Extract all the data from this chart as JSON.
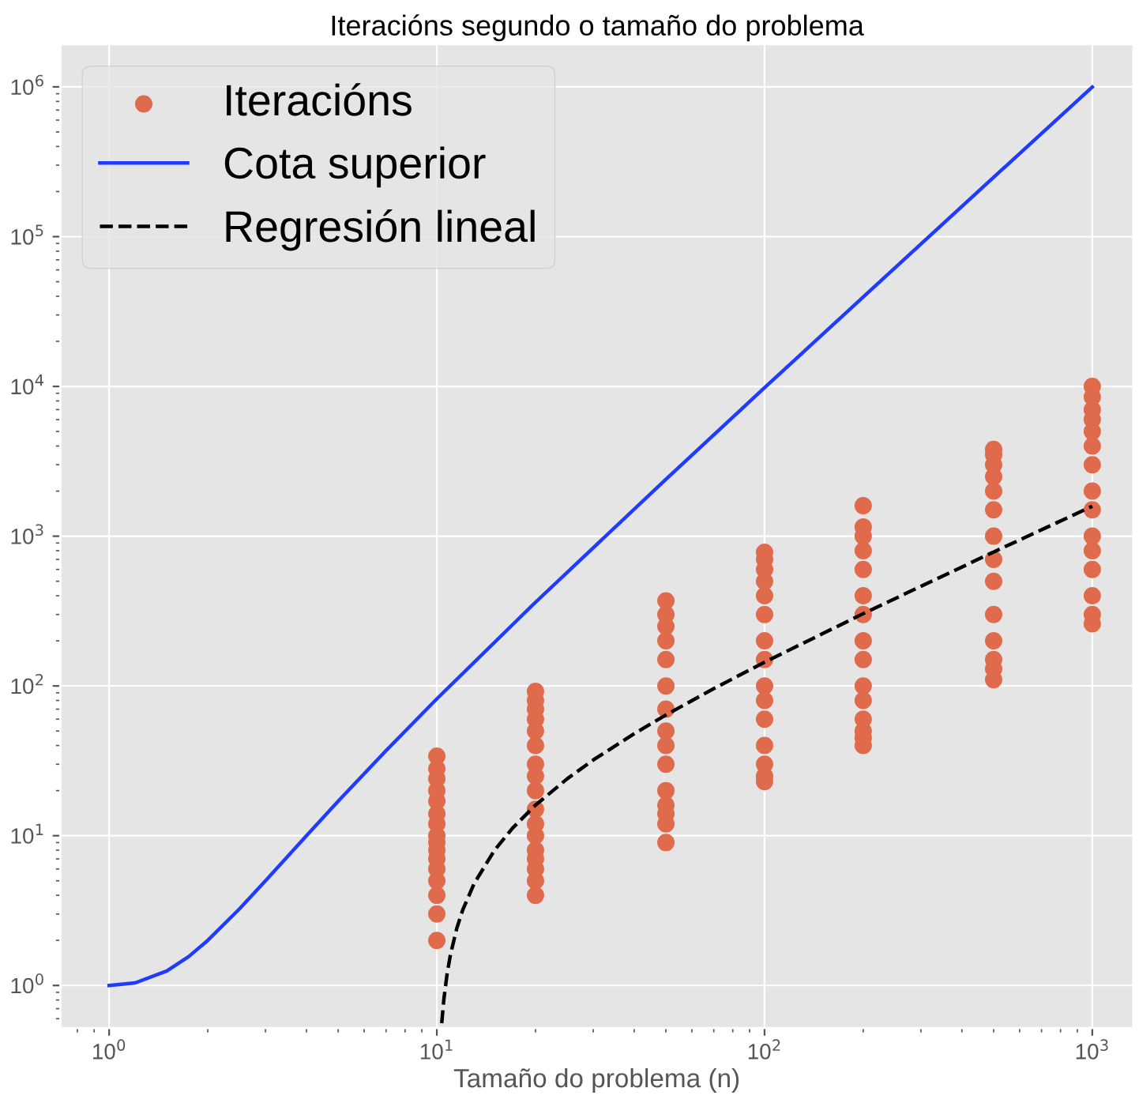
{
  "chart_data": {
    "type": "scatter",
    "title": "Iteracións segundo o tamaño do problema",
    "xlabel": "Tamaño do problema (n)",
    "log": "xy",
    "grid": true,
    "legend": "top left",
    "xlim": [
      0.71,
      1334
    ],
    "ylim": [
      0.52,
      1930000
    ],
    "xticks": [
      {
        "value": 1,
        "label": "10$^{0}$"
      },
      {
        "value": 10,
        "label": "10$^{1}$"
      },
      {
        "value": 100,
        "label": "10$^{2}$"
      },
      {
        "value": 1000,
        "label": "10$^{3}$"
      }
    ],
    "yticks": [
      {
        "value": 1,
        "label": "10$^{0}$"
      },
      {
        "value": 10,
        "label": "10$^{1}$"
      },
      {
        "value": 100,
        "label": "10$^{2}$"
      },
      {
        "value": 1000,
        "label": "10$^{3}$"
      },
      {
        "value": 10000,
        "label": "10$^{4}$"
      },
      {
        "value": 100000,
        "label": "10$^{5}$"
      },
      {
        "value": 1000000,
        "label": "10$^{6}$"
      }
    ],
    "series": [
      {
        "name": "Iteracións",
        "marker": "circle",
        "color": "#e06b4c",
        "x": [
          10,
          10,
          10,
          10,
          10,
          10,
          10,
          10,
          10,
          10,
          10,
          10,
          10,
          10,
          10,
          10,
          20,
          20,
          20,
          20,
          20,
          20,
          20,
          20,
          20,
          20,
          20,
          20,
          20,
          20,
          20,
          20,
          20,
          50,
          50,
          50,
          50,
          50,
          50,
          50,
          50,
          50,
          50,
          50,
          50,
          50,
          50,
          50,
          100,
          100,
          100,
          100,
          100,
          100,
          100,
          100,
          100,
          100,
          100,
          100,
          100,
          100,
          100,
          200,
          200,
          200,
          200,
          200,
          200,
          200,
          200,
          200,
          200,
          200,
          200,
          200,
          200,
          200,
          500,
          500,
          500,
          500,
          500,
          500,
          500,
          500,
          500,
          500,
          500,
          500,
          500,
          500,
          1000,
          1000,
          1000,
          1000,
          1000,
          1000,
          1000,
          1000,
          1000,
          1000,
          1000,
          1000,
          1000,
          1000,
          1000
        ],
        "values": [
          2,
          3,
          4,
          5,
          6,
          7,
          8,
          9,
          10,
          12,
          14,
          17,
          20,
          24,
          28,
          34,
          4,
          5,
          6,
          7,
          8,
          10,
          12,
          15,
          20,
          25,
          30,
          40,
          50,
          60,
          70,
          80,
          92,
          9,
          12,
          14,
          16,
          20,
          30,
          40,
          50,
          70,
          100,
          150,
          200,
          250,
          300,
          370,
          23,
          25,
          30,
          40,
          60,
          80,
          100,
          150,
          200,
          300,
          400,
          500,
          600,
          700,
          780,
          40,
          45,
          50,
          60,
          80,
          100,
          150,
          200,
          300,
          400,
          600,
          800,
          1000,
          1150,
          1600,
          110,
          130,
          150,
          200,
          300,
          500,
          700,
          1000,
          1500,
          2000,
          2500,
          3000,
          3500,
          3800,
          260,
          300,
          400,
          600,
          800,
          1000,
          1500,
          2000,
          3000,
          4000,
          5000,
          6000,
          7000,
          8500,
          10000
        ]
      },
      {
        "name": "Cota superior",
        "type": "line",
        "line_style": "solid",
        "color": "#1f3bff",
        "x": [
          1,
          1.2,
          1.5,
          1.75,
          2,
          2.5,
          3,
          4,
          5,
          7,
          10,
          20,
          50,
          100,
          200,
          500,
          1000
        ],
        "values": [
          1,
          1.04,
          1.25,
          1.56,
          2,
          3.25,
          5,
          10,
          17,
          37,
          82,
          362,
          2400,
          9800,
          39600,
          249000,
          998000
        ]
      },
      {
        "name": "Regresión lineal",
        "type": "line",
        "line_style": "dashed",
        "color": "#000000",
        "x": [
          10.35,
          10.5,
          10.75,
          11,
          11.5,
          12,
          13,
          15,
          17,
          20,
          25,
          30,
          40,
          50,
          70,
          100,
          200,
          500,
          1000
        ],
        "values": [
          0.56,
          0.8,
          1.2,
          1.6,
          2.4,
          3.2,
          4.8,
          8,
          11.2,
          16,
          24,
          32,
          48,
          64,
          96,
          144,
          304,
          784,
          1584
        ]
      }
    ]
  }
}
